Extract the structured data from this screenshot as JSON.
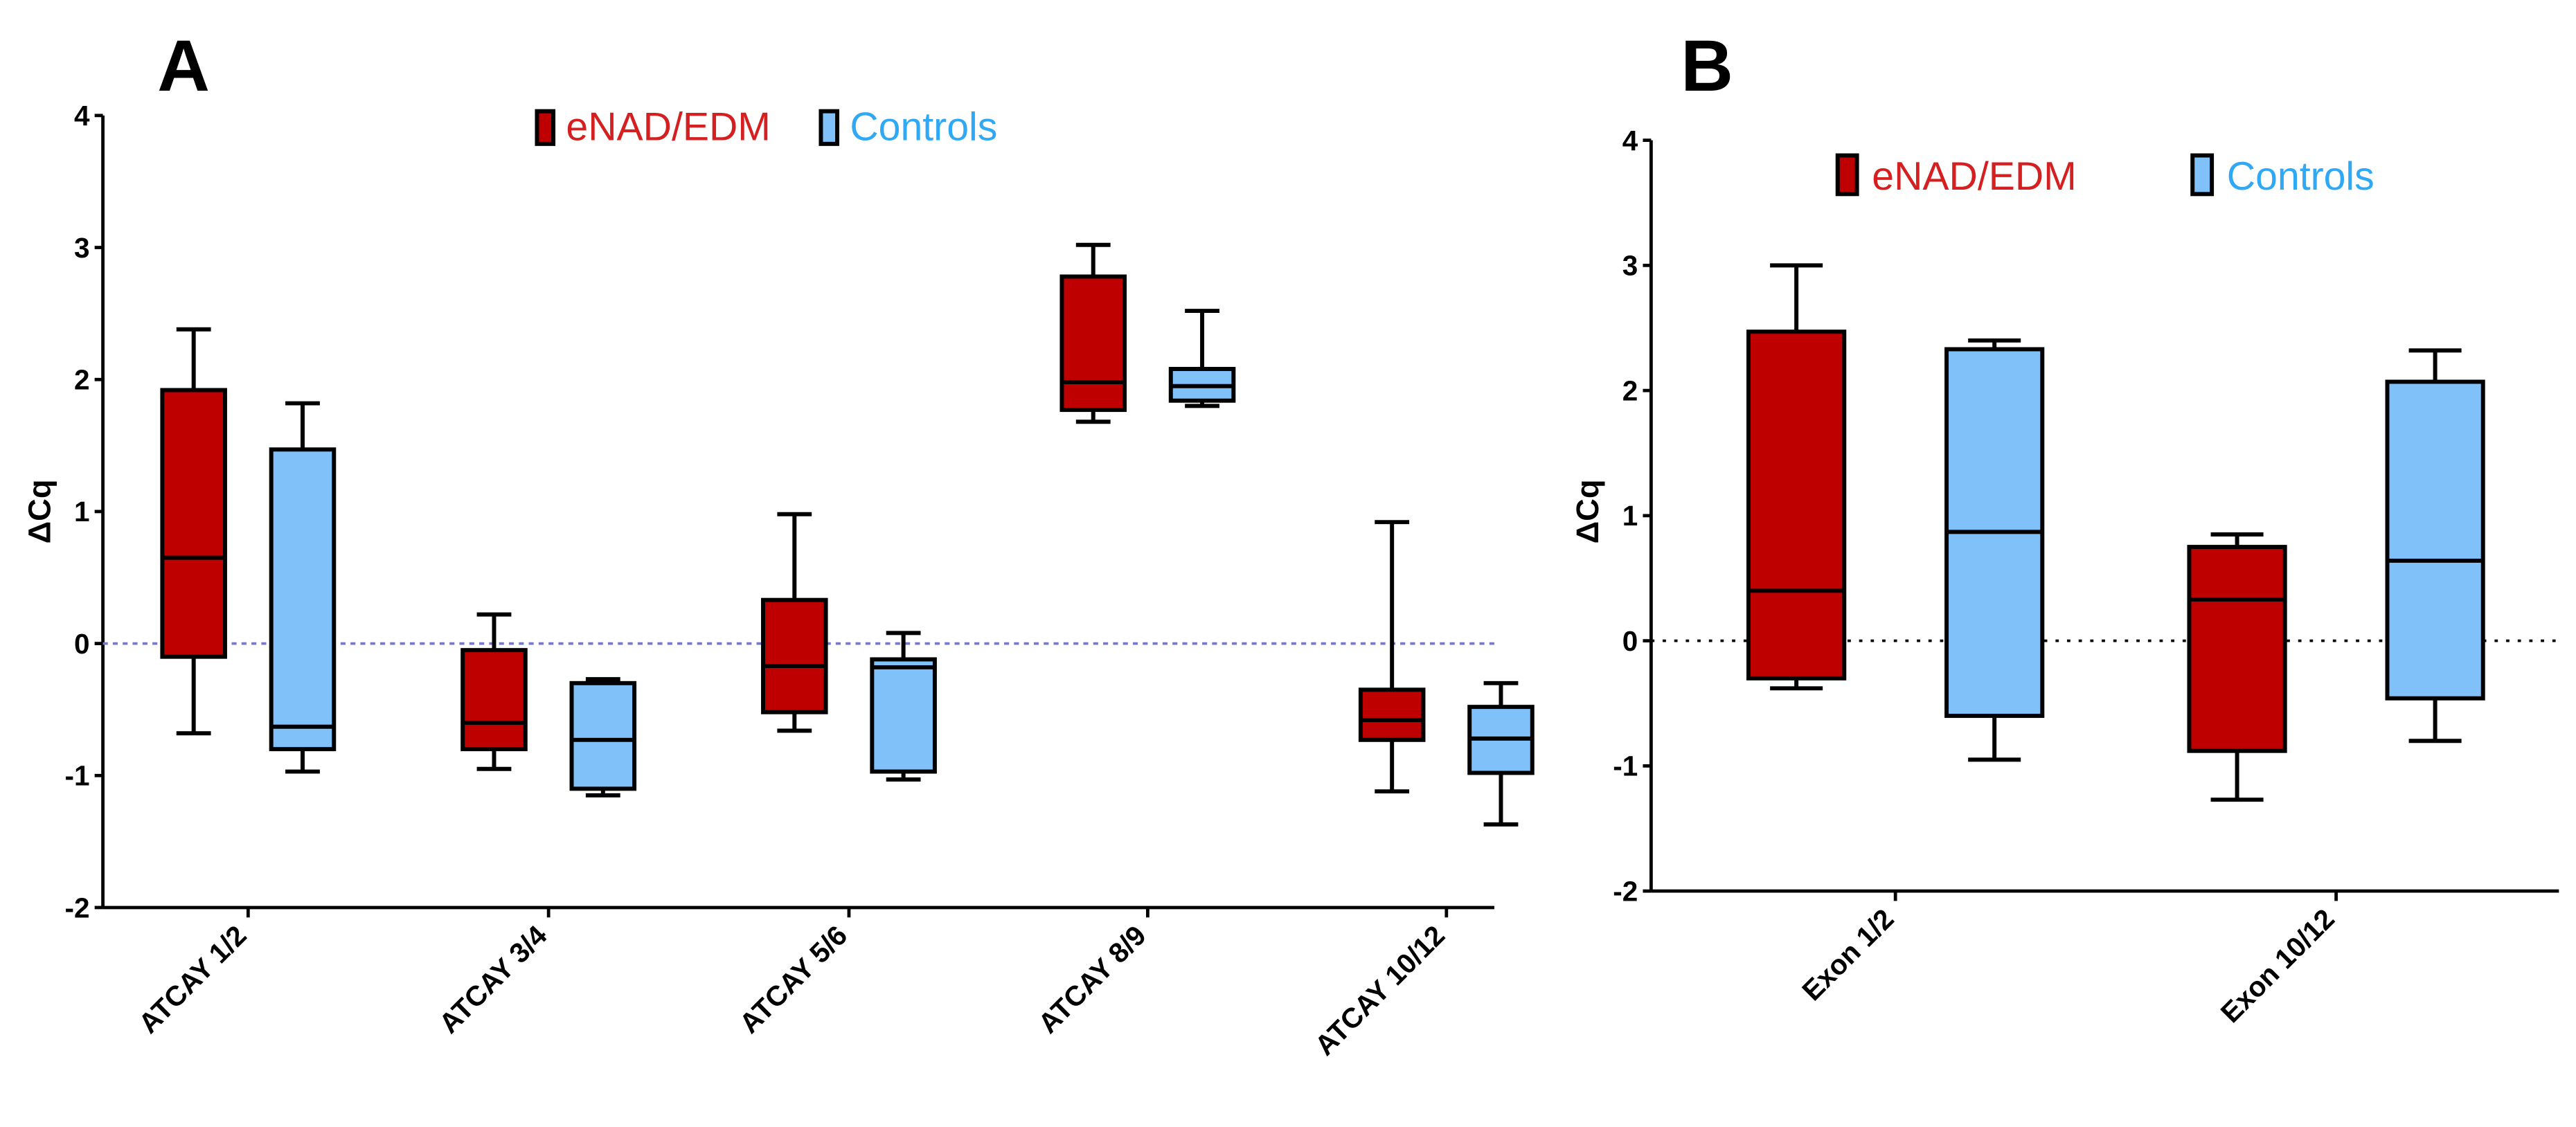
{
  "colors": {
    "eNAD": "#bf0000",
    "controls": "#7fc1f8",
    "legend_eNAD_text": "#d42020",
    "legend_controls_text": "#2fa8f5",
    "zero_line_A": "#7a78c8",
    "zero_line_B": "#000000"
  },
  "chart_data": [
    {
      "type": "box",
      "panel_label": "A",
      "ylabel": "ΔCq",
      "ylim": [
        -2,
        4
      ],
      "yticks": [
        "-2",
        "-1",
        "0",
        "1",
        "2",
        "3",
        "4"
      ],
      "reference_line": 0,
      "legend": [
        "eNAD/EDM",
        "Controls"
      ],
      "legend_position": "top-center",
      "categories": [
        "ATCAY 1/2",
        "ATCAY 3/4",
        "ATCAY 5/6",
        "ATCAY 8/9",
        "ATCAY 10/12"
      ],
      "series": [
        {
          "name": "eNAD/EDM",
          "boxes": [
            {
              "min": -0.68,
              "q1": -0.1,
              "median": 0.65,
              "q3": 1.92,
              "max": 2.38
            },
            {
              "min": -0.95,
              "q1": -0.8,
              "median": -0.6,
              "q3": -0.05,
              "max": 0.22
            },
            {
              "min": -0.66,
              "q1": -0.52,
              "median": -0.17,
              "q3": 0.33,
              "max": 0.98
            },
            {
              "min": 1.68,
              "q1": 1.77,
              "median": 1.98,
              "q3": 2.78,
              "max": 3.02
            },
            {
              "min": -1.12,
              "q1": -0.73,
              "median": -0.58,
              "q3": -0.35,
              "max": 0.92
            }
          ]
        },
        {
          "name": "Controls",
          "boxes": [
            {
              "min": -0.97,
              "q1": -0.8,
              "median": -0.63,
              "q3": 1.47,
              "max": 1.82
            },
            {
              "min": -1.15,
              "q1": -1.1,
              "median": -0.73,
              "q3": -0.3,
              "max": -0.27
            },
            {
              "min": -1.03,
              "q1": -0.97,
              "median": -0.18,
              "q3": -0.12,
              "max": 0.08
            },
            {
              "min": 1.8,
              "q1": 1.84,
              "median": 1.95,
              "q3": 2.08,
              "max": 2.52
            },
            {
              "min": -1.37,
              "q1": -0.98,
              "median": -0.72,
              "q3": -0.48,
              "max": -0.3
            }
          ]
        }
      ]
    },
    {
      "type": "box",
      "panel_label": "B",
      "ylabel": "ΔCq",
      "ylim": [
        -2,
        4
      ],
      "yticks": [
        "-2",
        "-1",
        "0",
        "1",
        "2",
        "3",
        "4"
      ],
      "reference_line": 0,
      "legend": [
        "eNAD/EDM",
        "Controls"
      ],
      "legend_position": "top-center",
      "categories": [
        "Exon 1/2",
        "Exon 10/12"
      ],
      "series": [
        {
          "name": "eNAD/EDM",
          "boxes": [
            {
              "min": -0.38,
              "q1": -0.3,
              "median": 0.4,
              "q3": 2.47,
              "max": 3.0
            },
            {
              "min": -1.27,
              "q1": -0.88,
              "median": 0.33,
              "q3": 0.75,
              "max": 0.85
            }
          ]
        },
        {
          "name": "Controls",
          "boxes": [
            {
              "min": -0.95,
              "q1": -0.6,
              "median": 0.87,
              "q3": 2.33,
              "max": 2.4
            },
            {
              "min": -0.8,
              "q1": -0.46,
              "median": 0.64,
              "q3": 2.07,
              "max": 2.32
            }
          ]
        }
      ]
    }
  ]
}
